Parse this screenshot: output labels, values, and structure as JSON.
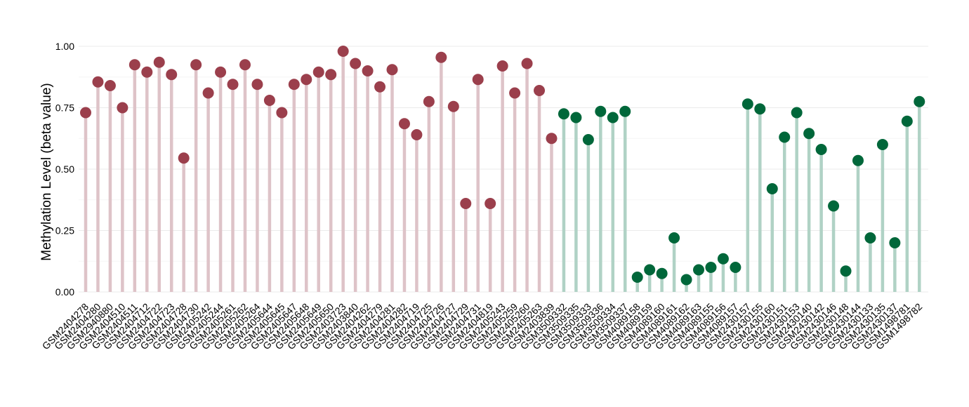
{
  "chart_data": {
    "type": "lollipop",
    "title": "",
    "xlabel": "",
    "ylabel": "Methylation Level (beta value)",
    "ylim": [
      0,
      1.0
    ],
    "yticks": [
      "0.00",
      "0.25",
      "0.50",
      "0.75",
      "1.00"
    ],
    "ytick_values": [
      0,
      0.25,
      0.5,
      0.75,
      1.0
    ],
    "grid": true,
    "legend": "none",
    "colors": {
      "group1_point": "#9B3F4C",
      "group1_stem": "#DEC3C8",
      "group2_point": "#00673A",
      "group2_stem": "#B0D2C5",
      "grid": "#EBEBEB"
    },
    "series": [
      {
        "categories": [
          "GSM2404278",
          "GSM2404280",
          "GSM2940880",
          "GSM2404510",
          "GSM2404511",
          "GSM2404712",
          "GSM2404722",
          "GSM2404723",
          "GSM2404728",
          "GSM2404730",
          "GSM2405242",
          "GSM2405244",
          "GSM2405261",
          "GSM2405262",
          "GSM2405264",
          "GSM2405644",
          "GSM2405645",
          "GSM2405647",
          "GSM2405648",
          "GSM2405649",
          "GSM2405650",
          "GSM2403723",
          "GSM2403840",
          "GSM2404262",
          "GSM2404279",
          "GSM2404281",
          "GSM2404282",
          "GSM2404719",
          "GSM2404725",
          "GSM2404726",
          "GSM2404727",
          "GSM2404729",
          "GSM2404731",
          "GSM2404819",
          "GSM2405243",
          "GSM2405259",
          "GSM2405260",
          "GSM2405263",
          "GSM2403839"
        ],
        "values": [
          0.73,
          0.855,
          0.84,
          0.75,
          0.925,
          0.895,
          0.935,
          0.885,
          0.545,
          0.925,
          0.81,
          0.895,
          0.845,
          0.925,
          0.845,
          0.78,
          0.73,
          0.845,
          0.865,
          0.895,
          0.885,
          0.98,
          0.93,
          0.9,
          0.835,
          0.905,
          0.685,
          0.64,
          0.775,
          0.955,
          0.755,
          0.36,
          0.865,
          0.36,
          0.92,
          0.81,
          0.93,
          0.82,
          0.625
        ]
      },
      {
        "categories": [
          "GSM3509332",
          "GSM3509335",
          "GSM3509333",
          "GSM3509336",
          "GSM3509334",
          "GSM3509337",
          "GSM4089158",
          "GSM4089159",
          "GSM4089160",
          "GSM4089161",
          "GSM4089162",
          "GSM4089163",
          "GSM4089155",
          "GSM4089156",
          "GSM4089157",
          "GSM2430157",
          "GSM2430155",
          "GSM2430160",
          "GSM2430151",
          "GSM2430153",
          "GSM2430140",
          "GSM2430142",
          "GSM2430146",
          "GSM2430148",
          "GSM2430144",
          "GSM2430133",
          "GSM2430135",
          "GSM2430137",
          "GSM1498781",
          "GSM1498782"
        ],
        "values": [
          0.725,
          0.71,
          0.62,
          0.735,
          0.71,
          0.735,
          0.06,
          0.09,
          0.075,
          0.22,
          0.05,
          0.09,
          0.1,
          0.135,
          0.1,
          0.765,
          0.745,
          0.42,
          0.63,
          0.73,
          0.645,
          0.58,
          0.35,
          0.085,
          0.535,
          0.22,
          0.6,
          0.2,
          0.695,
          0.775
        ]
      }
    ]
  }
}
